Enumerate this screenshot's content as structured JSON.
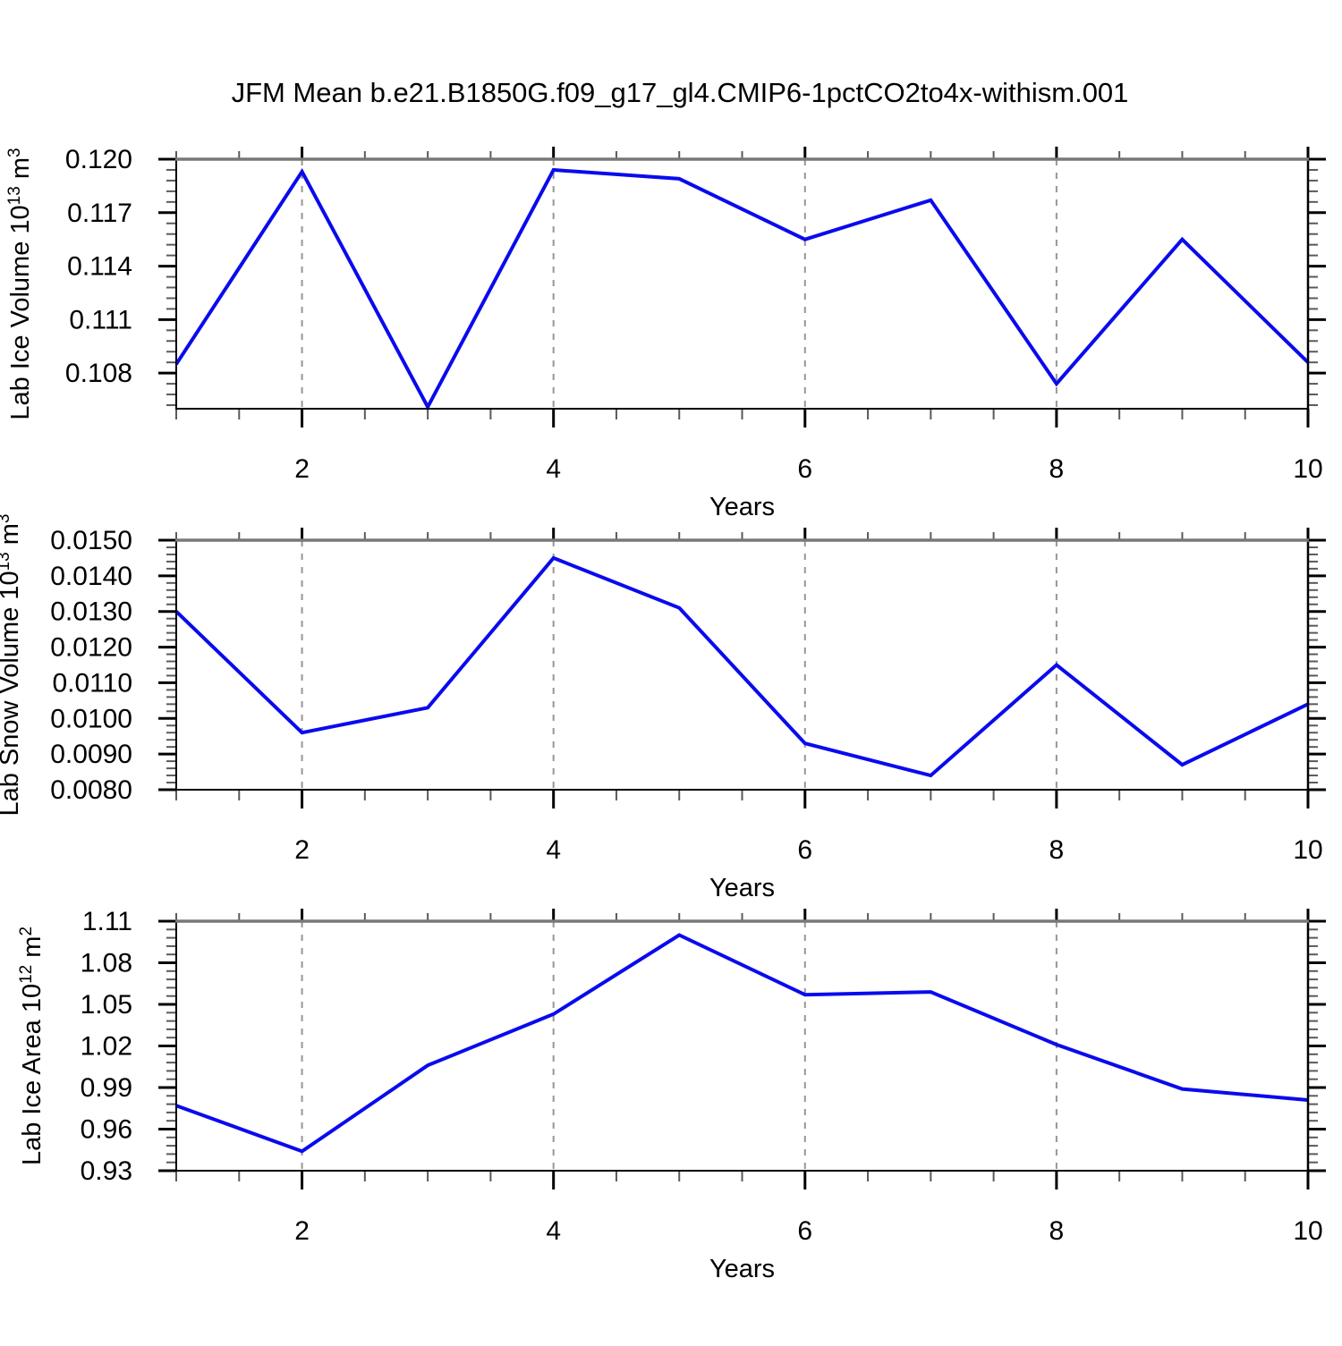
{
  "figure": {
    "title": "JFM Mean b.e21.B1850G.f09_g17_gl4.CMIP6-1pctCO2to4x-withism.001"
  },
  "style": {
    "line_color": "#0a0aee",
    "grid_color": "#969696",
    "top_frame_color": "#787878",
    "axis_color": "#000000",
    "minor_tick_color": "#5a5a5a",
    "background": "#ffffff"
  },
  "chart_data": [
    {
      "type": "line",
      "title": "",
      "xlabel": "Years",
      "ylabel": {
        "prefix": "Lab Ice Volume 10",
        "exponent": "13",
        "unit": " m",
        "unit_exponent": "3"
      },
      "x": [
        1,
        2,
        3,
        4,
        5,
        6,
        7,
        8,
        9,
        10
      ],
      "values": [
        0.1085,
        0.1193,
        0.1061,
        0.1194,
        0.1189,
        0.1155,
        0.1177,
        0.1074,
        0.1155,
        0.1086
      ],
      "xlim": [
        1,
        10
      ],
      "ylim": [
        0.106,
        0.12
      ],
      "xticks": [
        2,
        4,
        6,
        8,
        10
      ],
      "xtick_labels": [
        "2",
        "4",
        "6",
        "8",
        "10"
      ],
      "yticks": [
        0.108,
        0.111,
        0.114,
        0.117,
        0.12
      ],
      "ytick_labels": [
        "0.108",
        "0.111",
        "0.114",
        "0.117",
        "0.120"
      ],
      "x_minor_step": 0.5,
      "y_minor_step": 0.0006,
      "gridlines_x": [
        2,
        4,
        6,
        8
      ],
      "grid": "vertical-dashed",
      "legend": "none"
    },
    {
      "type": "line",
      "title": "",
      "xlabel": "Years",
      "ylabel": {
        "prefix": "Lab Snow Volume 10",
        "exponent": "13",
        "unit": " m",
        "unit_exponent": "3"
      },
      "x": [
        1,
        2,
        3,
        4,
        5,
        6,
        7,
        8,
        9,
        10
      ],
      "values": [
        0.013,
        0.0096,
        0.0103,
        0.0145,
        0.0131,
        0.0093,
        0.0084,
        0.0115,
        0.0087,
        0.0104
      ],
      "xlim": [
        1,
        10
      ],
      "ylim": [
        0.008,
        0.015
      ],
      "xticks": [
        2,
        4,
        6,
        8,
        10
      ],
      "xtick_labels": [
        "2",
        "4",
        "6",
        "8",
        "10"
      ],
      "yticks": [
        0.008,
        0.009,
        0.01,
        0.011,
        0.012,
        0.013,
        0.014,
        0.015
      ],
      "ytick_labels": [
        "0.0080",
        "0.0090",
        "0.0100",
        "0.0110",
        "0.0120",
        "0.0130",
        "0.0140",
        "0.0150"
      ],
      "x_minor_step": 0.5,
      "y_minor_step": 0.0002,
      "gridlines_x": [
        2,
        4,
        6,
        8
      ],
      "grid": "vertical-dashed",
      "legend": "none"
    },
    {
      "type": "line",
      "title": "",
      "xlabel": "Years",
      "ylabel": {
        "prefix": "Lab Ice Area 10",
        "exponent": "12",
        "unit": " m",
        "unit_exponent": "2"
      },
      "x": [
        1,
        2,
        3,
        4,
        5,
        6,
        7,
        8,
        9,
        10
      ],
      "values": [
        0.977,
        0.944,
        1.006,
        1.043,
        1.1,
        1.057,
        1.059,
        1.021,
        0.989,
        0.981
      ],
      "xlim": [
        1,
        10
      ],
      "ylim": [
        0.93,
        1.11
      ],
      "xticks": [
        2,
        4,
        6,
        8,
        10
      ],
      "xtick_labels": [
        "2",
        "4",
        "6",
        "8",
        "10"
      ],
      "yticks": [
        0.93,
        0.96,
        0.99,
        1.02,
        1.05,
        1.08,
        1.11
      ],
      "ytick_labels": [
        "0.93",
        "0.96",
        "0.99",
        "1.02",
        "1.05",
        "1.08",
        "1.11"
      ],
      "x_minor_step": 0.5,
      "y_minor_step": 0.006,
      "gridlines_x": [
        2,
        4,
        6,
        8
      ],
      "grid": "vertical-dashed",
      "legend": "none"
    }
  ]
}
